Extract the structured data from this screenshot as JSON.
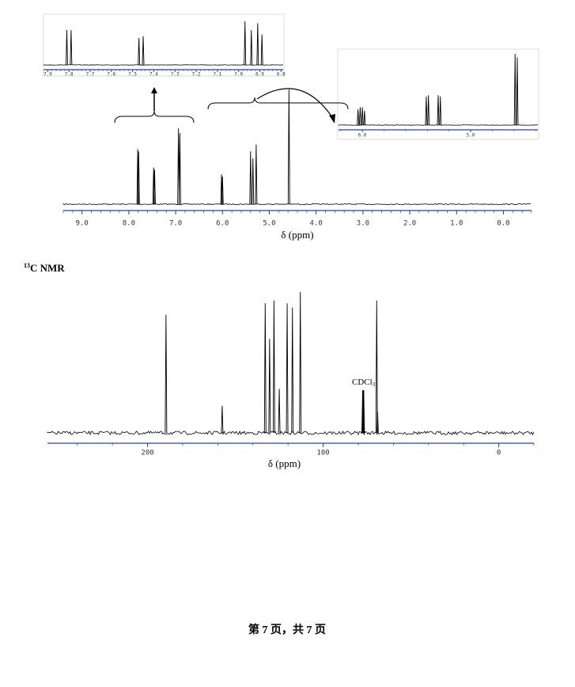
{
  "heading": {
    "sup": "13",
    "text": "C NMR"
  },
  "footer": "第 7 页，共 7 页",
  "chart_data": [
    {
      "type": "nmr",
      "xlabel": "δ (ppm)",
      "xlim": [
        9.4,
        -0.6
      ],
      "xticks": [
        {
          "value": 9,
          "label": "9.0"
        },
        {
          "value": 8,
          "label": "8.0"
        },
        {
          "value": 7,
          "label": "7.0"
        },
        {
          "value": 6,
          "label": "6.0"
        },
        {
          "value": 5,
          "label": "5.0"
        },
        {
          "value": 4,
          "label": "4.0"
        },
        {
          "value": 3,
          "label": "3.0"
        },
        {
          "value": 2,
          "label": "2.0"
        },
        {
          "value": 1,
          "label": "1.0"
        },
        {
          "value": 0,
          "label": "0.0"
        }
      ],
      "peaks": [
        {
          "ppm": 7.81,
          "intensity": 48
        },
        {
          "ppm": 7.79,
          "intensity": 46
        },
        {
          "ppm": 7.47,
          "intensity": 32
        },
        {
          "ppm": 7.45,
          "intensity": 30
        },
        {
          "ppm": 6.94,
          "intensity": 66
        },
        {
          "ppm": 6.91,
          "intensity": 62
        },
        {
          "ppm": 6.02,
          "intensity": 26
        },
        {
          "ppm": 6.0,
          "intensity": 24
        },
        {
          "ppm": 5.4,
          "intensity": 46
        },
        {
          "ppm": 5.35,
          "intensity": 40
        },
        {
          "ppm": 5.28,
          "intensity": 52
        },
        {
          "ppm": 4.58,
          "intensity": 100
        }
      ]
    },
    {
      "type": "nmr",
      "xlim": [
        7.92,
        6.79
      ],
      "xticks": [
        {
          "value": 7.9,
          "label": "7.9"
        },
        {
          "value": 7.8,
          "label": "7.8"
        },
        {
          "value": 7.7,
          "label": "7.7"
        },
        {
          "value": 7.6,
          "label": "7.6"
        },
        {
          "value": 7.5,
          "label": "7.5"
        },
        {
          "value": 7.4,
          "label": "7.4"
        },
        {
          "value": 7.3,
          "label": "7.3"
        },
        {
          "value": 7.2,
          "label": "7.2"
        },
        {
          "value": 7.1,
          "label": "7.1"
        },
        {
          "value": 7,
          "label": "7.0"
        },
        {
          "value": 6.9,
          "label": "6.9"
        },
        {
          "value": 6.8,
          "label": "6.8"
        }
      ],
      "peaks": [
        {
          "ppm": 7.81,
          "intensity": 80
        },
        {
          "ppm": 7.79,
          "intensity": 80
        },
        {
          "ppm": 7.47,
          "intensity": 62
        },
        {
          "ppm": 7.45,
          "intensity": 66
        },
        {
          "ppm": 6.97,
          "intensity": 100
        },
        {
          "ppm": 6.94,
          "intensity": 80
        },
        {
          "ppm": 6.91,
          "intensity": 96
        },
        {
          "ppm": 6.89,
          "intensity": 70
        }
      ]
    },
    {
      "type": "nmr",
      "xlim": [
        6.22,
        4.38
      ],
      "xticks": [
        {
          "value": 6,
          "label": "6.0"
        },
        {
          "value": 5,
          "label": "5.0"
        }
      ],
      "peaks": [
        {
          "ppm": 6.04,
          "intensity": 22
        },
        {
          "ppm": 6.02,
          "intensity": 25
        },
        {
          "ppm": 6.0,
          "intensity": 25
        },
        {
          "ppm": 5.98,
          "intensity": 20
        },
        {
          "ppm": 5.41,
          "intensity": 40
        },
        {
          "ppm": 5.39,
          "intensity": 42
        },
        {
          "ppm": 5.3,
          "intensity": 42
        },
        {
          "ppm": 5.28,
          "intensity": 40
        },
        {
          "ppm": 4.59,
          "intensity": 100
        },
        {
          "ppm": 4.57,
          "intensity": 95
        }
      ]
    },
    {
      "type": "nmr",
      "xlabel": "δ (ppm)",
      "xlim": [
        257,
        -20
      ],
      "xticks": [
        200,
        100,
        0
      ],
      "annotation": {
        "text": "CDCl",
        "subscript": "3"
      },
      "peaks": [
        {
          "ppm": 189.5,
          "intensity": 83
        },
        {
          "ppm": 157.5,
          "intensity": 19
        },
        {
          "ppm": 133,
          "intensity": 91
        },
        {
          "ppm": 130.5,
          "intensity": 66
        },
        {
          "ppm": 128,
          "intensity": 93
        },
        {
          "ppm": 125,
          "intensity": 31
        },
        {
          "ppm": 120.5,
          "intensity": 91
        },
        {
          "ppm": 117.5,
          "intensity": 88
        },
        {
          "ppm": 113,
          "intensity": 99
        },
        {
          "ppm": 77.5,
          "intensity": 30
        },
        {
          "ppm": 77.2,
          "intensity": 30
        },
        {
          "ppm": 76.9,
          "intensity": 30
        },
        {
          "ppm": 69.5,
          "intensity": 93
        },
        {
          "ppm": 69,
          "intensity": 15
        }
      ]
    }
  ]
}
